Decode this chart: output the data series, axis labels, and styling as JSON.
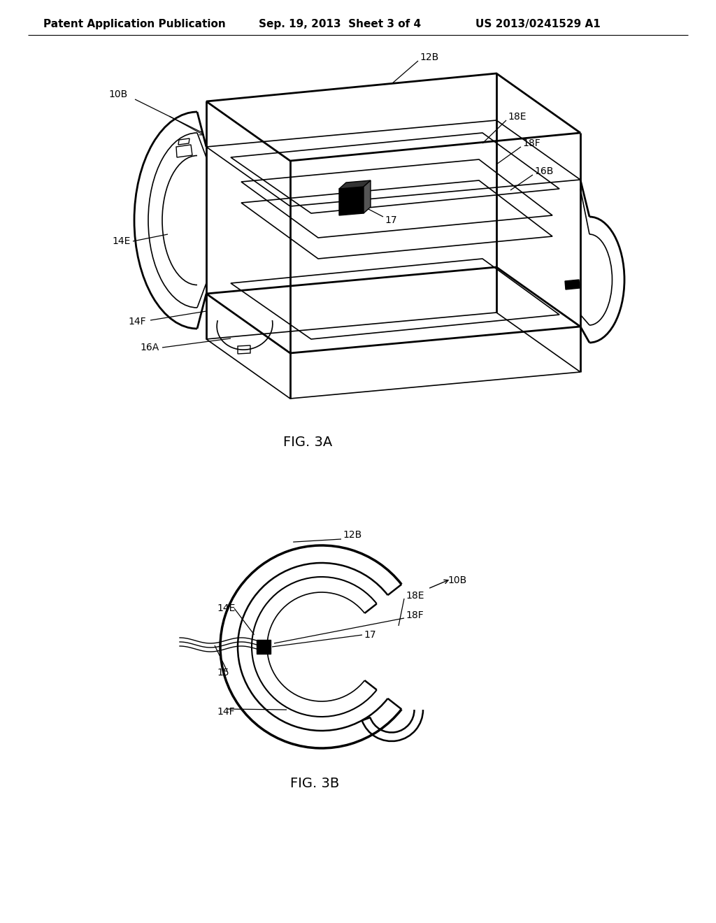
{
  "background_color": "#ffffff",
  "header_left": "Patent Application Publication",
  "header_center": "Sep. 19, 2013  Sheet 3 of 4",
  "header_right": "US 2013/0241529 A1",
  "fig3a_label": "FIG. 3A",
  "fig3b_label": "FIG. 3B"
}
